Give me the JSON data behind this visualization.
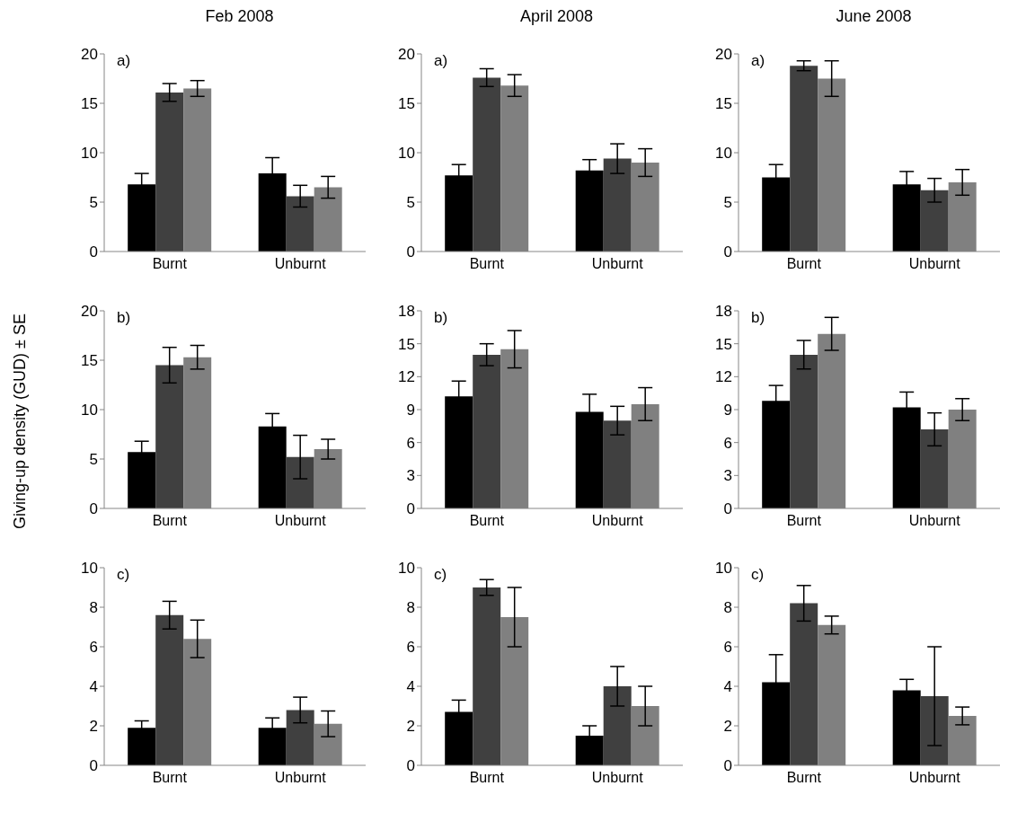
{
  "chart_data": [
    {
      "type": "bar",
      "title": "Feb 2008",
      "categories": [
        "Burnt",
        "Unburnt"
      ],
      "ylim": [
        0,
        20
      ],
      "yticks": [
        0,
        5,
        10,
        15,
        20
      ],
      "annotations": [
        "a)"
      ],
      "series": [
        {
          "color": "#000000",
          "values": [
            6.8,
            7.9
          ],
          "errors": [
            1.1,
            1.6
          ]
        },
        {
          "color": "#404040",
          "values": [
            16.1,
            5.6
          ],
          "errors": [
            0.9,
            1.1
          ]
        },
        {
          "color": "#808080",
          "values": [
            16.5,
            6.5
          ],
          "errors": [
            0.8,
            1.1
          ]
        }
      ]
    },
    {
      "type": "bar",
      "title": "April 2008",
      "categories": [
        "Burnt",
        "Unburnt"
      ],
      "ylim": [
        0,
        20
      ],
      "yticks": [
        0,
        5,
        10,
        15,
        20
      ],
      "annotations": [
        "a)"
      ],
      "series": [
        {
          "color": "#000000",
          "values": [
            7.7,
            8.2
          ],
          "errors": [
            1.1,
            1.1
          ]
        },
        {
          "color": "#404040",
          "values": [
            17.6,
            9.4
          ],
          "errors": [
            0.9,
            1.5
          ]
        },
        {
          "color": "#808080",
          "values": [
            16.8,
            9.0
          ],
          "errors": [
            1.1,
            1.4
          ]
        }
      ]
    },
    {
      "type": "bar",
      "title": "June 2008",
      "categories": [
        "Burnt",
        "Unburnt"
      ],
      "ylim": [
        0,
        20
      ],
      "yticks": [
        0,
        5,
        10,
        15,
        20
      ],
      "annotations": [
        "a)"
      ],
      "series": [
        {
          "color": "#000000",
          "values": [
            7.5,
            6.8
          ],
          "errors": [
            1.3,
            1.3
          ]
        },
        {
          "color": "#404040",
          "values": [
            18.8,
            6.2
          ],
          "errors": [
            0.5,
            1.2
          ]
        },
        {
          "color": "#808080",
          "values": [
            17.5,
            7.0
          ],
          "errors": [
            1.8,
            1.3
          ]
        }
      ]
    },
    {
      "type": "bar",
      "ylabel": "Giving-up density (GUD) ± SE",
      "categories": [
        "Burnt",
        "Unburnt"
      ],
      "ylim": [
        0,
        20
      ],
      "yticks": [
        0,
        5,
        10,
        15,
        20
      ],
      "annotations": [
        "b)"
      ],
      "series": [
        {
          "color": "#000000",
          "values": [
            5.7,
            8.3
          ],
          "errors": [
            1.1,
            1.3
          ]
        },
        {
          "color": "#404040",
          "values": [
            14.5,
            5.2
          ],
          "errors": [
            1.8,
            2.2
          ]
        },
        {
          "color": "#808080",
          "values": [
            15.3,
            6.0
          ],
          "errors": [
            1.2,
            1.0
          ]
        }
      ]
    },
    {
      "type": "bar",
      "categories": [
        "Burnt",
        "Unburnt"
      ],
      "ylim": [
        0,
        18
      ],
      "yticks": [
        0,
        3,
        6,
        9,
        12,
        15,
        18
      ],
      "annotations": [
        "b)"
      ],
      "series": [
        {
          "color": "#000000",
          "values": [
            10.2,
            8.8
          ],
          "errors": [
            1.4,
            1.6
          ]
        },
        {
          "color": "#404040",
          "values": [
            14.0,
            8.0
          ],
          "errors": [
            1.0,
            1.3
          ]
        },
        {
          "color": "#808080",
          "values": [
            14.5,
            9.5
          ],
          "errors": [
            1.7,
            1.5
          ]
        }
      ]
    },
    {
      "type": "bar",
      "categories": [
        "Burnt",
        "Unburnt"
      ],
      "ylim": [
        0,
        18
      ],
      "yticks": [
        0,
        3,
        6,
        9,
        12,
        15,
        18
      ],
      "annotations": [
        "b)"
      ],
      "series": [
        {
          "color": "#000000",
          "values": [
            9.8,
            9.2
          ],
          "errors": [
            1.4,
            1.4
          ]
        },
        {
          "color": "#404040",
          "values": [
            14.0,
            7.2
          ],
          "errors": [
            1.3,
            1.5
          ]
        },
        {
          "color": "#808080",
          "values": [
            15.9,
            9.0
          ],
          "errors": [
            1.5,
            1.0
          ]
        }
      ]
    },
    {
      "type": "bar",
      "categories": [
        "Burnt",
        "Unburnt"
      ],
      "ylim": [
        0,
        10
      ],
      "yticks": [
        0,
        2,
        4,
        6,
        8,
        10
      ],
      "annotations": [
        "c)"
      ],
      "series": [
        {
          "color": "#000000",
          "values": [
            1.9,
            1.9
          ],
          "errors": [
            0.35,
            0.5
          ]
        },
        {
          "color": "#404040",
          "values": [
            7.6,
            2.8
          ],
          "errors": [
            0.7,
            0.65
          ]
        },
        {
          "color": "#808080",
          "values": [
            6.4,
            2.1
          ],
          "errors": [
            0.95,
            0.65
          ]
        }
      ]
    },
    {
      "type": "bar",
      "categories": [
        "Burnt",
        "Unburnt"
      ],
      "ylim": [
        0,
        10
      ],
      "yticks": [
        0,
        2,
        4,
        6,
        8,
        10
      ],
      "annotations": [
        "c)"
      ],
      "series": [
        {
          "color": "#000000",
          "values": [
            2.7,
            1.5
          ],
          "errors": [
            0.6,
            0.5
          ]
        },
        {
          "color": "#404040",
          "values": [
            9.0,
            4.0
          ],
          "errors": [
            0.4,
            1.0
          ]
        },
        {
          "color": "#808080",
          "values": [
            7.5,
            3.0
          ],
          "errors": [
            1.5,
            1.0
          ]
        }
      ]
    },
    {
      "type": "bar",
      "categories": [
        "Burnt",
        "Unburnt"
      ],
      "ylim": [
        0,
        10
      ],
      "yticks": [
        0,
        2,
        4,
        6,
        8,
        10
      ],
      "annotations": [
        "c)"
      ],
      "series": [
        {
          "color": "#000000",
          "values": [
            4.2,
            3.8
          ],
          "errors": [
            1.4,
            0.55
          ]
        },
        {
          "color": "#404040",
          "values": [
            8.2,
            3.5
          ],
          "errors": [
            0.9,
            2.5
          ]
        },
        {
          "color": "#808080",
          "values": [
            7.1,
            2.5
          ],
          "errors": [
            0.45,
            0.45
          ]
        }
      ]
    }
  ]
}
